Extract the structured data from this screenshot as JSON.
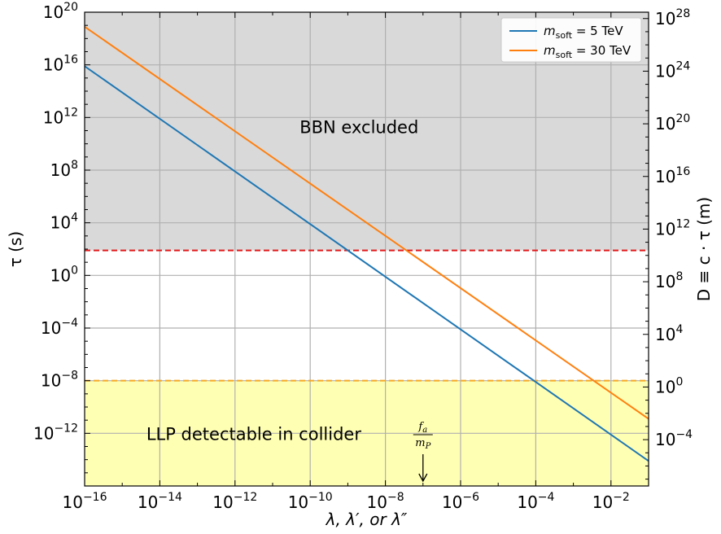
{
  "chart_data": {
    "type": "line",
    "xlabel": "λ, λ′, or λ″",
    "ylabel_left": "τ (s)",
    "ylabel_right": "D ≡ c · τ (m)",
    "x_scale": "log",
    "y_scale": "log",
    "xlim_log10": [
      -16,
      -1
    ],
    "ylim_log10": [
      -16,
      20
    ],
    "y2lim_log10": [
      -7.52,
      28.48
    ],
    "grid": true,
    "x_ticks": [
      {
        "exp": -16,
        "label": "10",
        "sup": "−16"
      },
      {
        "exp": -14,
        "label": "10",
        "sup": "−14"
      },
      {
        "exp": -12,
        "label": "10",
        "sup": "−12"
      },
      {
        "exp": -10,
        "label": "10",
        "sup": "−10"
      },
      {
        "exp": -8,
        "label": "10",
        "sup": "−8"
      },
      {
        "exp": -6,
        "label": "10",
        "sup": "−6"
      },
      {
        "exp": -4,
        "label": "10",
        "sup": "−4"
      },
      {
        "exp": -2,
        "label": "10",
        "sup": "−2"
      }
    ],
    "y_ticks": [
      {
        "exp": -12,
        "label": "10",
        "sup": "−12"
      },
      {
        "exp": -8,
        "label": "10",
        "sup": "−8"
      },
      {
        "exp": -4,
        "label": "10",
        "sup": "−4"
      },
      {
        "exp": 0,
        "label": "10",
        "sup": "0"
      },
      {
        "exp": 4,
        "label": "10",
        "sup": "4"
      },
      {
        "exp": 8,
        "label": "10",
        "sup": "8"
      },
      {
        "exp": 12,
        "label": "10",
        "sup": "12"
      },
      {
        "exp": 16,
        "label": "10",
        "sup": "16"
      },
      {
        "exp": 20,
        "label": "10",
        "sup": "20"
      }
    ],
    "y2_ticks": [
      {
        "exp": -4,
        "label": "10",
        "sup": "−4"
      },
      {
        "exp": 0,
        "label": "10",
        "sup": "0"
      },
      {
        "exp": 4,
        "label": "10",
        "sup": "4"
      },
      {
        "exp": 8,
        "label": "10",
        "sup": "8"
      },
      {
        "exp": 12,
        "label": "10",
        "sup": "12"
      },
      {
        "exp": 16,
        "label": "10",
        "sup": "16"
      },
      {
        "exp": 20,
        "label": "10",
        "sup": "20"
      },
      {
        "exp": 24,
        "label": "10",
        "sup": "24"
      },
      {
        "exp": 28,
        "label": "10",
        "sup": "28"
      }
    ],
    "series": [
      {
        "name": "m_soft = 5 TeV",
        "name_var": "m",
        "name_sub": "soft",
        "name_rest": " = 5 TeV",
        "color": "#1f77b4",
        "x_log10": [
          -16,
          -1
        ],
        "y_log10": [
          15.9,
          -14.1
        ]
      },
      {
        "name": "m_soft = 30 TeV",
        "name_var": "m",
        "name_sub": "soft",
        "name_rest": " = 30 TeV",
        "color": "#ff7f0e",
        "x_log10": [
          -16,
          -1
        ],
        "y_log10": [
          18.9,
          -10.9
        ]
      }
    ],
    "regions": [
      {
        "name": "BBN excluded",
        "y_from_log10": 1.9,
        "y_to_log10": 20,
        "color": "#d9d9d9"
      },
      {
        "name": "LLP detectable in collider",
        "y_from_log10": -16,
        "y_to_log10": -8,
        "color": "#ffffb3"
      }
    ],
    "hlines": [
      {
        "y_log10": 1.9,
        "color": "#e31a1c"
      },
      {
        "y_log10": -8,
        "color": "#f5a623"
      }
    ],
    "annotations": [
      {
        "text": "BBN excluded",
        "x_log10": -8.7,
        "y_log10": 10.8
      },
      {
        "text": "LLP detectable in collider",
        "x_log10": -11.5,
        "y_log10": -12.5
      }
    ],
    "marker": {
      "numerator": "f",
      "numerator_sub": "a",
      "denominator": "m",
      "denominator_sub": "P",
      "x_log10": -7
    }
  }
}
